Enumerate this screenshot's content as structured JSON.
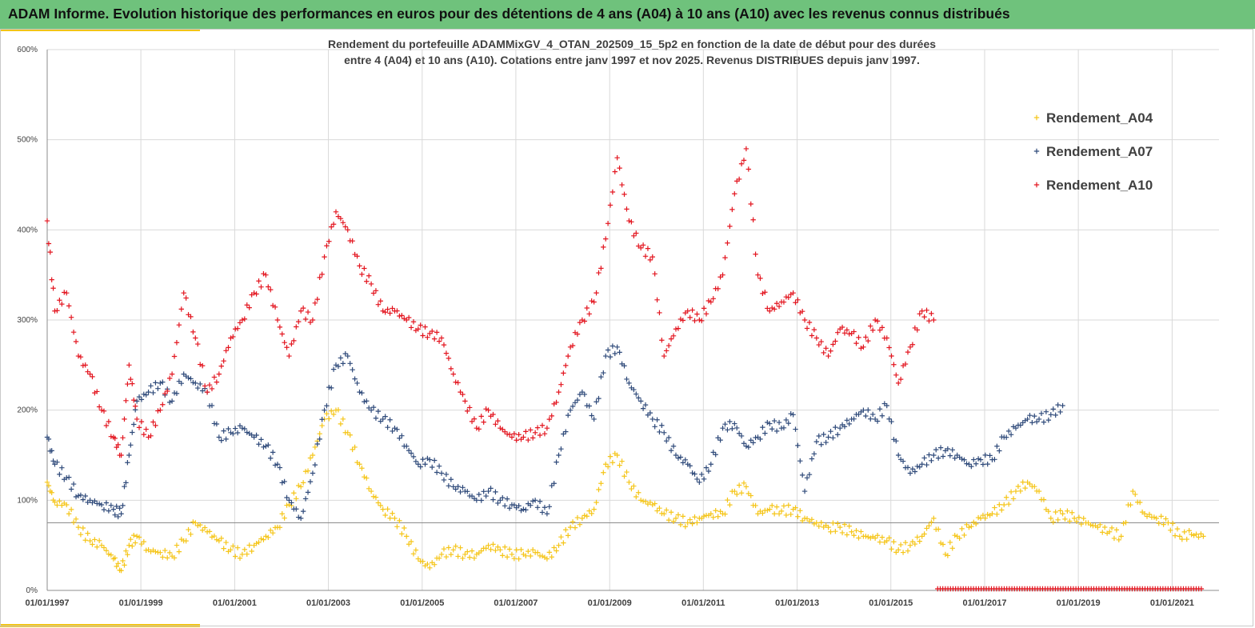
{
  "header": {
    "title": "ADAM Informe. Evolution historique des performances en euros pour des détentions de 4 ans (A04) à 10 ans (A10) avec les revenus connus distribués"
  },
  "chart": {
    "subtitle_line1": "Rendement du portefeuille ADAMMixGV_4_OTAN_202509_15_5p2  en fonction de la date de début pour des durées",
    "subtitle_line2": "entre 4 (A04) et 10 ans (A10). Cotations  entre janv 1997 et nov 2025. Revenus DISTRIBUES depuis janv 1997."
  },
  "colors": {
    "banner": "#6fc27c",
    "accent": "#f2c417",
    "A04": "#f5c518",
    "A07": "#2f4a7a",
    "A10": "#e3151f"
  },
  "chart_data": {
    "type": "scatter",
    "marker": "+",
    "xlabel": "",
    "ylabel": "",
    "xlim": [
      "1997-01-01",
      "2022-01-01"
    ],
    "ylim": [
      0,
      600
    ],
    "y_tick_labels": [
      "0%",
      "100%",
      "200%",
      "300%",
      "400%",
      "500%",
      "600%"
    ],
    "x_tick_labels": [
      "01/01/1997",
      "01/01/1999",
      "01/01/2001",
      "01/01/2003",
      "01/01/2005",
      "01/01/2007",
      "01/01/2009",
      "01/01/2011",
      "01/01/2013",
      "01/01/2015",
      "01/01/2017",
      "01/01/2019",
      "01/01/2021"
    ],
    "grid": true,
    "legend": "top-right",
    "reference_line_y": 75,
    "series": [
      {
        "name": "Rendement_A04",
        "color": "#f5c518",
        "points": [
          [
            "1997-01-01",
            120
          ],
          [
            "1997-03-01",
            98
          ],
          [
            "1997-06-01",
            95
          ],
          [
            "1997-09-01",
            70
          ],
          [
            "1997-12-01",
            55
          ],
          [
            "1998-03-01",
            50
          ],
          [
            "1998-06-01",
            35
          ],
          [
            "1998-08-01",
            22
          ],
          [
            "1998-10-01",
            50
          ],
          [
            "1998-12-01",
            60
          ],
          [
            "1999-03-01",
            45
          ],
          [
            "1999-06-01",
            42
          ],
          [
            "1999-09-01",
            38
          ],
          [
            "1999-12-01",
            55
          ],
          [
            "2000-03-01",
            75
          ],
          [
            "2000-06-01",
            65
          ],
          [
            "2000-09-01",
            55
          ],
          [
            "2000-12-01",
            45
          ],
          [
            "2001-03-01",
            40
          ],
          [
            "2001-06-01",
            50
          ],
          [
            "2001-09-01",
            60
          ],
          [
            "2001-12-01",
            70
          ],
          [
            "2002-03-01",
            95
          ],
          [
            "2002-06-01",
            115
          ],
          [
            "2002-09-01",
            150
          ],
          [
            "2002-12-01",
            190
          ],
          [
            "2003-03-01",
            200
          ],
          [
            "2003-06-01",
            175
          ],
          [
            "2003-09-01",
            140
          ],
          [
            "2003-12-01",
            110
          ],
          [
            "2004-03-01",
            90
          ],
          [
            "2004-06-01",
            80
          ],
          [
            "2004-09-01",
            60
          ],
          [
            "2004-12-01",
            35
          ],
          [
            "2005-03-01",
            25
          ],
          [
            "2005-06-01",
            40
          ],
          [
            "2005-09-01",
            45
          ],
          [
            "2005-12-01",
            40
          ],
          [
            "2006-03-01",
            40
          ],
          [
            "2006-06-01",
            50
          ],
          [
            "2006-09-01",
            45
          ],
          [
            "2006-12-01",
            40
          ],
          [
            "2007-03-01",
            40
          ],
          [
            "2007-06-01",
            42
          ],
          [
            "2007-09-01",
            35
          ],
          [
            "2007-12-01",
            50
          ],
          [
            "2008-03-01",
            70
          ],
          [
            "2008-06-01",
            80
          ],
          [
            "2008-09-01",
            90
          ],
          [
            "2008-12-01",
            140
          ],
          [
            "2009-03-01",
            150
          ],
          [
            "2009-06-01",
            120
          ],
          [
            "2009-09-01",
            100
          ],
          [
            "2009-12-01",
            95
          ],
          [
            "2010-03-01",
            85
          ],
          [
            "2010-06-01",
            80
          ],
          [
            "2010-09-01",
            75
          ],
          [
            "2010-12-01",
            80
          ],
          [
            "2011-03-01",
            85
          ],
          [
            "2011-06-01",
            85
          ],
          [
            "2011-09-01",
            110
          ],
          [
            "2011-12-01",
            115
          ],
          [
            "2012-03-01",
            85
          ],
          [
            "2012-06-01",
            90
          ],
          [
            "2012-09-01",
            88
          ],
          [
            "2012-12-01",
            90
          ],
          [
            "2013-03-01",
            80
          ],
          [
            "2013-06-01",
            75
          ],
          [
            "2013-09-01",
            70
          ],
          [
            "2013-12-01",
            70
          ],
          [
            "2014-03-01",
            65
          ],
          [
            "2014-06-01",
            60
          ],
          [
            "2014-09-01",
            58
          ],
          [
            "2014-12-01",
            55
          ],
          [
            "2015-03-01",
            45
          ],
          [
            "2015-06-01",
            50
          ],
          [
            "2015-09-01",
            60
          ],
          [
            "2015-12-01",
            80
          ],
          [
            "2016-03-01",
            40
          ],
          [
            "2016-06-01",
            60
          ],
          [
            "2016-09-01",
            70
          ],
          [
            "2016-12-01",
            80
          ],
          [
            "2017-03-01",
            85
          ],
          [
            "2017-06-01",
            95
          ],
          [
            "2017-09-01",
            110
          ],
          [
            "2017-12-01",
            120
          ],
          [
            "2018-03-01",
            110
          ],
          [
            "2018-06-01",
            80
          ],
          [
            "2018-09-01",
            85
          ],
          [
            "2018-12-01",
            80
          ],
          [
            "2019-03-01",
            75
          ],
          [
            "2019-06-01",
            70
          ],
          [
            "2019-09-01",
            65
          ],
          [
            "2019-12-01",
            60
          ],
          [
            "2020-03-01",
            110
          ],
          [
            "2020-06-01",
            85
          ],
          [
            "2020-09-01",
            80
          ],
          [
            "2020-12-01",
            75
          ],
          [
            "2021-03-01",
            60
          ],
          [
            "2021-06-01",
            62
          ],
          [
            "2021-09-01",
            60
          ]
        ]
      },
      {
        "name": "Rendement_A07",
        "color": "#2f4a7a",
        "points": [
          [
            "1997-01-01",
            170
          ],
          [
            "1997-03-01",
            140
          ],
          [
            "1997-06-01",
            125
          ],
          [
            "1997-09-01",
            105
          ],
          [
            "1997-12-01",
            100
          ],
          [
            "1998-03-01",
            95
          ],
          [
            "1998-06-01",
            90
          ],
          [
            "1998-08-01",
            85
          ],
          [
            "1998-10-01",
            150
          ],
          [
            "1998-12-01",
            210
          ],
          [
            "1999-03-01",
            220
          ],
          [
            "1999-06-01",
            230
          ],
          [
            "1999-09-01",
            210
          ],
          [
            "1999-12-01",
            240
          ],
          [
            "2000-03-01",
            230
          ],
          [
            "2000-06-01",
            220
          ],
          [
            "2000-09-01",
            170
          ],
          [
            "2000-12-01",
            175
          ],
          [
            "2001-03-01",
            180
          ],
          [
            "2001-06-01",
            170
          ],
          [
            "2001-09-01",
            160
          ],
          [
            "2001-12-01",
            140
          ],
          [
            "2002-03-01",
            100
          ],
          [
            "2002-06-01",
            80
          ],
          [
            "2002-09-01",
            130
          ],
          [
            "2002-12-01",
            200
          ],
          [
            "2003-03-01",
            250
          ],
          [
            "2003-06-01",
            260
          ],
          [
            "2003-09-01",
            220
          ],
          [
            "2003-12-01",
            200
          ],
          [
            "2004-03-01",
            190
          ],
          [
            "2004-06-01",
            180
          ],
          [
            "2004-09-01",
            160
          ],
          [
            "2004-12-01",
            140
          ],
          [
            "2005-03-01",
            145
          ],
          [
            "2005-06-01",
            130
          ],
          [
            "2005-09-01",
            115
          ],
          [
            "2005-12-01",
            110
          ],
          [
            "2006-03-01",
            100
          ],
          [
            "2006-06-01",
            110
          ],
          [
            "2006-09-01",
            100
          ],
          [
            "2006-12-01",
            95
          ],
          [
            "2007-03-01",
            90
          ],
          [
            "2007-06-01",
            100
          ],
          [
            "2007-09-01",
            85
          ],
          [
            "2007-12-01",
            150
          ],
          [
            "2008-03-01",
            200
          ],
          [
            "2008-06-01",
            220
          ],
          [
            "2008-09-01",
            190
          ],
          [
            "2008-12-01",
            260
          ],
          [
            "2009-03-01",
            270
          ],
          [
            "2009-06-01",
            230
          ],
          [
            "2009-09-01",
            210
          ],
          [
            "2009-12-01",
            190
          ],
          [
            "2010-03-01",
            175
          ],
          [
            "2010-06-01",
            150
          ],
          [
            "2010-09-01",
            140
          ],
          [
            "2010-12-01",
            120
          ],
          [
            "2011-03-01",
            140
          ],
          [
            "2011-06-01",
            180
          ],
          [
            "2011-09-01",
            185
          ],
          [
            "2011-12-01",
            160
          ],
          [
            "2012-03-01",
            170
          ],
          [
            "2012-06-01",
            185
          ],
          [
            "2012-09-01",
            180
          ],
          [
            "2012-12-01",
            195
          ],
          [
            "2013-03-01",
            110
          ],
          [
            "2013-06-01",
            165
          ],
          [
            "2013-09-01",
            170
          ],
          [
            "2013-12-01",
            180
          ],
          [
            "2014-03-01",
            190
          ],
          [
            "2014-06-01",
            200
          ],
          [
            "2014-09-01",
            190
          ],
          [
            "2014-12-01",
            205
          ],
          [
            "2015-03-01",
            150
          ],
          [
            "2015-06-01",
            130
          ],
          [
            "2015-09-01",
            140
          ],
          [
            "2015-12-01",
            150
          ],
          [
            "2016-03-01",
            155
          ],
          [
            "2016-06-01",
            150
          ],
          [
            "2016-09-01",
            140
          ],
          [
            "2016-12-01",
            145
          ],
          [
            "2017-03-01",
            145
          ],
          [
            "2017-06-01",
            170
          ],
          [
            "2017-09-01",
            180
          ],
          [
            "2017-12-01",
            190
          ],
          [
            "2018-03-01",
            190
          ],
          [
            "2018-06-01",
            195
          ],
          [
            "2018-09-01",
            205
          ]
        ]
      },
      {
        "name": "Rendement_A10",
        "color": "#e3151f",
        "points": [
          [
            "1997-01-01",
            410
          ],
          [
            "1997-03-01",
            310
          ],
          [
            "1997-06-01",
            330
          ],
          [
            "1997-09-01",
            260
          ],
          [
            "1997-12-01",
            240
          ],
          [
            "1998-03-01",
            200
          ],
          [
            "1998-06-01",
            170
          ],
          [
            "1998-08-01",
            150
          ],
          [
            "1998-10-01",
            250
          ],
          [
            "1998-12-01",
            190
          ],
          [
            "1999-03-01",
            170
          ],
          [
            "1999-06-01",
            200
          ],
          [
            "1999-09-01",
            240
          ],
          [
            "1999-12-01",
            330
          ],
          [
            "2000-03-01",
            280
          ],
          [
            "2000-06-01",
            220
          ],
          [
            "2000-09-01",
            240
          ],
          [
            "2000-12-01",
            280
          ],
          [
            "2001-03-01",
            300
          ],
          [
            "2001-06-01",
            330
          ],
          [
            "2001-09-01",
            350
          ],
          [
            "2001-12-01",
            300
          ],
          [
            "2002-03-01",
            260
          ],
          [
            "2002-06-01",
            310
          ],
          [
            "2002-09-01",
            300
          ],
          [
            "2002-12-01",
            370
          ],
          [
            "2003-03-01",
            420
          ],
          [
            "2003-06-01",
            400
          ],
          [
            "2003-09-01",
            360
          ],
          [
            "2003-12-01",
            340
          ],
          [
            "2004-03-01",
            310
          ],
          [
            "2004-06-01",
            310
          ],
          [
            "2004-09-01",
            300
          ],
          [
            "2004-12-01",
            290
          ],
          [
            "2005-03-01",
            285
          ],
          [
            "2005-06-01",
            280
          ],
          [
            "2005-09-01",
            240
          ],
          [
            "2005-12-01",
            210
          ],
          [
            "2006-03-01",
            180
          ],
          [
            "2006-06-01",
            200
          ],
          [
            "2006-09-01",
            180
          ],
          [
            "2006-12-01",
            170
          ],
          [
            "2007-03-01",
            170
          ],
          [
            "2007-06-01",
            175
          ],
          [
            "2007-09-01",
            180
          ],
          [
            "2007-12-01",
            220
          ],
          [
            "2008-03-01",
            270
          ],
          [
            "2008-06-01",
            300
          ],
          [
            "2008-09-01",
            320
          ],
          [
            "2008-12-01",
            390
          ],
          [
            "2009-03-01",
            480
          ],
          [
            "2009-06-01",
            410
          ],
          [
            "2009-09-01",
            380
          ],
          [
            "2009-12-01",
            370
          ],
          [
            "2010-03-01",
            260
          ],
          [
            "2010-06-01",
            290
          ],
          [
            "2010-09-01",
            310
          ],
          [
            "2010-12-01",
            300
          ],
          [
            "2011-03-01",
            320
          ],
          [
            "2011-06-01",
            350
          ],
          [
            "2011-09-01",
            440
          ],
          [
            "2011-12-01",
            490
          ],
          [
            "2012-03-01",
            350
          ],
          [
            "2012-06-01",
            310
          ],
          [
            "2012-09-01",
            320
          ],
          [
            "2012-12-01",
            330
          ],
          [
            "2013-03-01",
            300
          ],
          [
            "2013-06-01",
            280
          ],
          [
            "2013-09-01",
            260
          ],
          [
            "2013-12-01",
            290
          ],
          [
            "2014-03-01",
            285
          ],
          [
            "2014-06-01",
            270
          ],
          [
            "2014-09-01",
            300
          ],
          [
            "2014-12-01",
            280
          ],
          [
            "2015-03-01",
            230
          ],
          [
            "2015-06-01",
            270
          ],
          [
            "2015-09-01",
            310
          ],
          [
            "2015-12-01",
            300
          ]
        ]
      },
      {
        "name": "Rendement_A10",
        "color": "#e3151f",
        "baseline_from": "2016-01-01",
        "baseline_to": "2021-09-01",
        "baseline_value": 0
      }
    ]
  }
}
